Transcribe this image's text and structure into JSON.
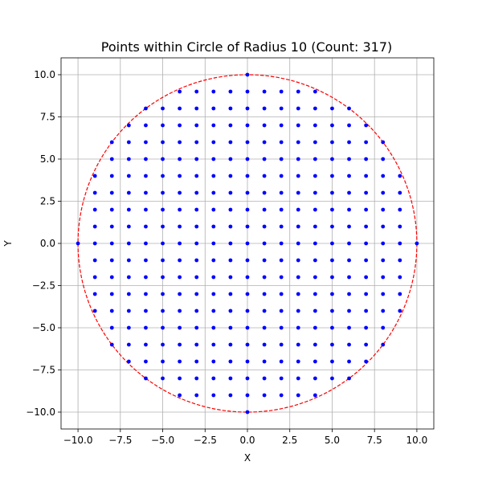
{
  "chart_data": {
    "type": "scatter",
    "title": "Points within Circle of Radius 10 (Count: 317)",
    "xlabel": "X",
    "ylabel": "Y",
    "xlim": [
      -11,
      11
    ],
    "ylim": [
      -11,
      11
    ],
    "x_ticks": [
      -10.0,
      -7.5,
      -5.0,
      -2.5,
      0.0,
      2.5,
      5.0,
      7.5,
      10.0
    ],
    "y_ticks": [
      -10.0,
      -7.5,
      -5.0,
      -2.5,
      0.0,
      2.5,
      5.0,
      7.5,
      10.0
    ],
    "x_tick_labels": [
      "−10.0",
      "−7.5",
      "−5.0",
      "−2.5",
      "0.0",
      "2.5",
      "5.0",
      "7.5",
      "10.0"
    ],
    "y_tick_labels": [
      "−10.0",
      "−7.5",
      "−5.0",
      "−2.5",
      "0.0",
      "2.5",
      "5.0",
      "7.5",
      "10.0"
    ],
    "grid": true,
    "circle": {
      "center": [
        0,
        0
      ],
      "radius": 10,
      "color": "#ff0000",
      "style": "dashed"
    },
    "points": {
      "rule": "all integer (x, y) with x^2 + y^2 <= 100",
      "count": 317,
      "color": "#0000ff"
    }
  }
}
